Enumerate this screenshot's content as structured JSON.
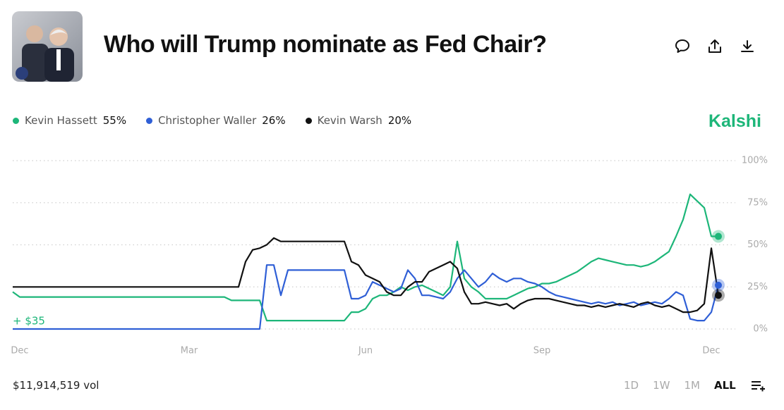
{
  "header": {
    "title": "Who will Trump nominate as Fed Chair?",
    "brand": "Kalshi"
  },
  "footer": {
    "volume": "$11,914,519 vol",
    "ranges": [
      "1D",
      "1W",
      "1M",
      "ALL"
    ]
  },
  "chart_data": {
    "type": "line",
    "annotation": "+ $35",
    "categories": [
      null,
      "Dec",
      null,
      null,
      null,
      null,
      null,
      null,
      null,
      null,
      null,
      null,
      null,
      null,
      null,
      null,
      null,
      null,
      null,
      null,
      null,
      null,
      null,
      null,
      null,
      "Mar",
      null,
      null,
      null,
      null,
      null,
      null,
      null,
      null,
      null,
      null,
      null,
      null,
      null,
      null,
      null,
      null,
      null,
      null,
      null,
      null,
      null,
      null,
      null,
      null,
      "Jun",
      null,
      null,
      null,
      null,
      null,
      null,
      null,
      null,
      null,
      null,
      null,
      null,
      null,
      null,
      null,
      null,
      null,
      null,
      null,
      null,
      null,
      null,
      null,
      null,
      "Sep",
      null,
      null,
      null,
      null,
      null,
      null,
      null,
      null,
      null,
      null,
      null,
      null,
      null,
      null,
      null,
      null,
      null,
      null,
      null,
      null,
      null,
      null,
      null,
      "Dec",
      null
    ],
    "ylim": [
      0,
      100
    ],
    "yticks": [
      {
        "value": 0,
        "label": "0%"
      },
      {
        "value": 25,
        "label": "25%"
      },
      {
        "value": 50,
        "label": "50%"
      },
      {
        "value": 75,
        "label": "75%"
      },
      {
        "value": 100,
        "label": "100%"
      }
    ],
    "grid": true,
    "series": [
      {
        "name": "Kevin Hassett",
        "color": "#1db679",
        "legend_value": {
          "value": 55,
          "label": "55%"
        },
        "values": [
          22,
          19,
          19,
          19,
          19,
          19,
          19,
          19,
          19,
          19,
          19,
          19,
          19,
          19,
          19,
          19,
          19,
          19,
          19,
          19,
          19,
          19,
          19,
          19,
          19,
          19,
          19,
          19,
          19,
          19,
          19,
          17,
          17,
          17,
          17,
          17,
          5,
          5,
          5,
          5,
          5,
          5,
          5,
          5,
          5,
          5,
          5,
          5,
          10,
          10,
          12,
          18,
          20,
          20,
          22,
          25,
          23,
          25,
          26,
          24,
          22,
          20,
          25,
          52,
          30,
          25,
          22,
          18,
          18,
          18,
          18,
          20,
          22,
          24,
          25,
          27,
          27,
          28,
          30,
          32,
          34,
          37,
          40,
          42,
          41,
          40,
          39,
          38,
          38,
          37,
          38,
          40,
          43,
          46,
          55,
          65,
          80,
          76,
          72,
          55,
          55
        ]
      },
      {
        "name": "Christopher Waller",
        "color": "#2f5fd6",
        "legend_value": {
          "value": 26,
          "label": "26%"
        },
        "values": [
          0,
          0,
          0,
          0,
          0,
          0,
          0,
          0,
          0,
          0,
          0,
          0,
          0,
          0,
          0,
          0,
          0,
          0,
          0,
          0,
          0,
          0,
          0,
          0,
          0,
          0,
          0,
          0,
          0,
          0,
          0,
          0,
          0,
          0,
          0,
          0,
          38,
          38,
          20,
          35,
          35,
          35,
          35,
          35,
          35,
          35,
          35,
          35,
          18,
          18,
          20,
          28,
          26,
          24,
          22,
          24,
          35,
          30,
          20,
          20,
          19,
          18,
          22,
          30,
          35,
          30,
          25,
          28,
          33,
          30,
          28,
          30,
          30,
          28,
          27,
          25,
          22,
          20,
          19,
          18,
          17,
          16,
          15,
          16,
          15,
          16,
          14,
          15,
          16,
          14,
          15,
          16,
          15,
          18,
          22,
          20,
          6,
          5,
          5,
          10,
          26
        ]
      },
      {
        "name": "Kevin Warsh",
        "color": "#111111",
        "legend_value": {
          "value": 20,
          "label": "20%"
        },
        "values": [
          25,
          25,
          25,
          25,
          25,
          25,
          25,
          25,
          25,
          25,
          25,
          25,
          25,
          25,
          25,
          25,
          25,
          25,
          25,
          25,
          25,
          25,
          25,
          25,
          25,
          25,
          25,
          25,
          25,
          25,
          25,
          25,
          25,
          40,
          47,
          48,
          50,
          54,
          52,
          52,
          52,
          52,
          52,
          52,
          52,
          52,
          52,
          52,
          40,
          38,
          32,
          30,
          28,
          22,
          20,
          20,
          25,
          28,
          28,
          34,
          36,
          38,
          40,
          36,
          22,
          15,
          15,
          16,
          15,
          14,
          15,
          12,
          15,
          17,
          18,
          18,
          18,
          17,
          16,
          15,
          14,
          14,
          13,
          14,
          13,
          14,
          15,
          14,
          13,
          15,
          16,
          14,
          13,
          14,
          12,
          10,
          10,
          11,
          15,
          48,
          20
        ]
      }
    ]
  }
}
